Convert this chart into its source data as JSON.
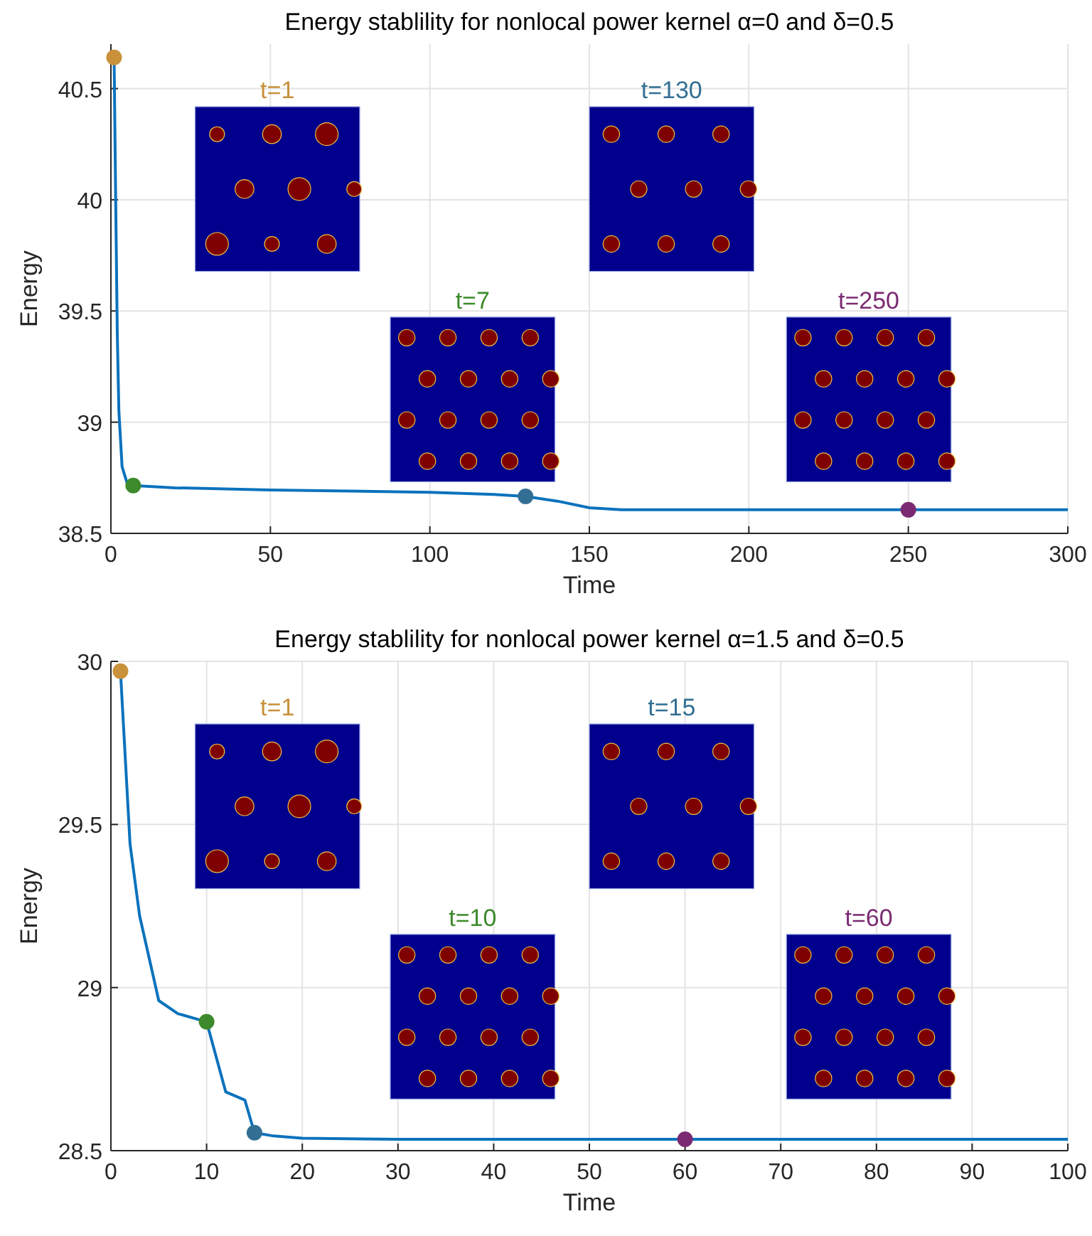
{
  "chart_data": [
    {
      "type": "line",
      "title": "Energy stablility for nonlocal power kernel α=0 and δ=0.5",
      "xlabel": "Time",
      "ylabel": "Energy",
      "xlim": [
        0,
        300
      ],
      "xticks": [
        0,
        50,
        100,
        150,
        200,
        250,
        300
      ],
      "ylim": [
        38.5,
        40.7
      ],
      "yticks": [
        38.5,
        39,
        39.5,
        40,
        40.5
      ],
      "grid": true,
      "marker": "none",
      "line_style": "solid",
      "series": [
        {
          "color": "#0b72bd",
          "x": [
            1,
            1.5,
            2,
            2.5,
            3.5,
            5,
            7,
            20,
            50,
            100,
            120,
            130,
            140,
            150,
            160,
            200,
            250,
            300
          ],
          "values": [
            40.64,
            40.0,
            39.4,
            39.05,
            38.8,
            38.73,
            38.715,
            38.705,
            38.695,
            38.685,
            38.675,
            38.666,
            38.645,
            38.615,
            38.606,
            38.606,
            38.606,
            38.606
          ]
        },
        {
          "type": "scatter",
          "marker": "circle",
          "colors": [
            "#c8913a",
            "#3d8a2c",
            "#336f94",
            "#7b2a72"
          ],
          "x": [
            1,
            7,
            130,
            250
          ],
          "values": [
            40.64,
            38.715,
            38.666,
            38.606
          ]
        }
      ],
      "annotations": [
        "t=1",
        "t=7",
        "t=130",
        "t=250"
      ]
    },
    {
      "type": "line",
      "title": "Energy stablility for nonlocal power kernel α=1.5 and δ=0.5",
      "xlabel": "Time",
      "ylabel": "Energy",
      "xlim": [
        0,
        100
      ],
      "xticks": [
        0,
        10,
        20,
        30,
        40,
        50,
        60,
        70,
        80,
        90,
        100
      ],
      "ylim": [
        28.5,
        30
      ],
      "yticks": [
        28.5,
        29,
        29.5,
        30
      ],
      "grid": true,
      "marker": "none",
      "line_style": "solid",
      "series": [
        {
          "color": "#0b72bd",
          "x": [
            1,
            2,
            3,
            5,
            7,
            10,
            12,
            14,
            15,
            17,
            20,
            30,
            60,
            100
          ],
          "values": [
            29.97,
            29.44,
            29.22,
            28.96,
            28.92,
            28.895,
            28.68,
            28.655,
            28.555,
            28.545,
            28.538,
            28.535,
            28.535,
            28.535
          ]
        },
        {
          "type": "scatter",
          "marker": "circle",
          "colors": [
            "#c8913a",
            "#3d8a2c",
            "#336f94",
            "#7b2a72"
          ],
          "x": [
            1,
            10,
            15,
            60
          ],
          "values": [
            29.97,
            28.895,
            28.555,
            28.535
          ]
        }
      ],
      "annotations": [
        "t=1",
        "t=10",
        "t=15",
        "t=60"
      ]
    }
  ]
}
